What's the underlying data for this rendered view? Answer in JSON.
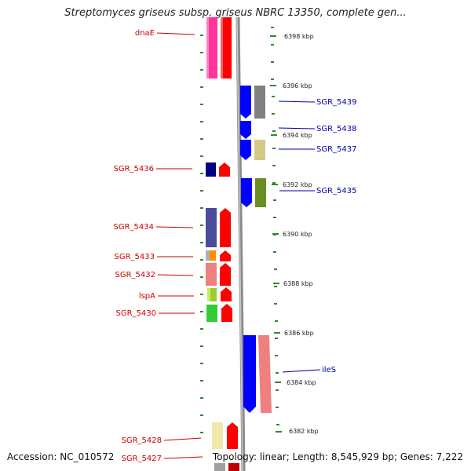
{
  "title": "Streptomyces griseus subsp. griseus NBRC 13350, complete gen...",
  "footer": {
    "accession": "Accession: NC_010572",
    "info": "Topology: linear; Length: 8,545,929 bp; Genes: 7,222"
  },
  "scale_labels": [
    "6398 kbp",
    "6396 kbp",
    "6394 kbp",
    "6392 kbp",
    "6390 kbp",
    "6388 kbp",
    "6386 kbp",
    "6384 kbp",
    "6382 kbp"
  ],
  "colors": {
    "left_label": "#cc0000",
    "right_label": "#0000aa",
    "tick": "#2e8b2e",
    "backbone": "#8a8a8a"
  },
  "left_genes": [
    {
      "label": "dnaE",
      "color": "#ff3399"
    },
    {
      "label": "SGR_5436",
      "color": "#000080"
    },
    {
      "label": "SGR_5434",
      "color": "#4b4b9b"
    },
    {
      "label": "SGR_5433",
      "color": "#ff8c00"
    },
    {
      "label": "SGR_5432",
      "color": "#f08080"
    },
    {
      "label": "lspA",
      "color": "#9acd32"
    },
    {
      "label": "SGR_5430",
      "color": "#32cd32"
    },
    {
      "label": "SGR_5428",
      "color": "#eee8aa"
    },
    {
      "label": "SGR_5427",
      "color": "#c0c0c0"
    }
  ],
  "right_genes": [
    {
      "label": "SGR_5439",
      "color": "#808080"
    },
    {
      "label": "SGR_5438",
      "color": "#0000ff"
    },
    {
      "label": "SGR_5437",
      "color": "#d2c98a"
    },
    {
      "label": "SGR_5435",
      "color": "#6b8e23"
    },
    {
      "label": "ileS",
      "color": "#f08080"
    }
  ]
}
